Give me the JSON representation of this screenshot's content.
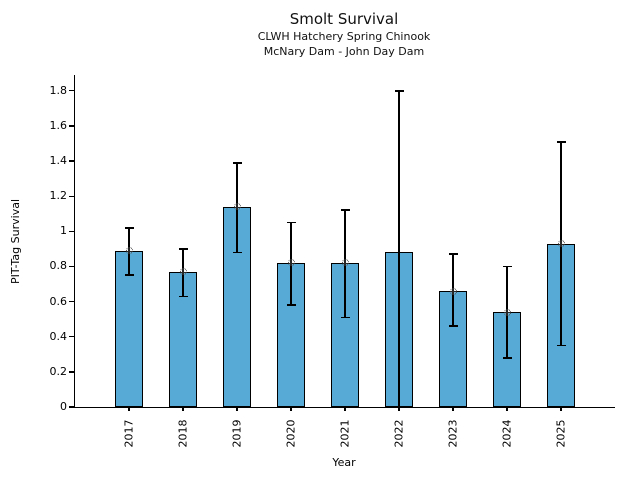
{
  "header": {
    "title": "Smolt Survival",
    "subtitle1": "CLWH Hatchery Spring Chinook",
    "subtitle2": "McNary Dam - John Day Dam"
  },
  "axes": {
    "x_label": "Year",
    "y_label": "PIT-Tag Survival"
  },
  "chart_data": {
    "type": "bar",
    "title": "Smolt Survival",
    "subtitle": [
      "CLWH Hatchery Spring Chinook",
      "McNary Dam - John Day Dam"
    ],
    "xlabel": "Year",
    "ylabel": "PIT-Tag Survival",
    "categories": [
      "2017",
      "2018",
      "2019",
      "2020",
      "2021",
      "2022",
      "2023",
      "2024",
      "2025"
    ],
    "values": [
      0.89,
      0.77,
      1.14,
      0.82,
      0.82,
      0.88,
      0.66,
      0.54,
      0.93
    ],
    "error_low": [
      0.75,
      0.63,
      0.88,
      0.58,
      0.51,
      0.0,
      0.46,
      0.28,
      0.35
    ],
    "error_high": [
      1.02,
      0.9,
      1.39,
      1.05,
      1.12,
      1.8,
      0.87,
      0.8,
      1.51
    ],
    "point_markers": [
      true,
      true,
      true,
      true,
      true,
      false,
      true,
      true,
      true
    ],
    "yticks": [
      0,
      0.2,
      0.4,
      0.6,
      0.8,
      1,
      1.2,
      1.4,
      1.6,
      1.8
    ],
    "ylim": [
      0,
      1.89
    ],
    "grid": false,
    "legend": "none",
    "bar_color": "#57A9D6",
    "bar_edge_color": "#000000",
    "error_color": "#000000",
    "marker_edge_color": "#333333"
  }
}
